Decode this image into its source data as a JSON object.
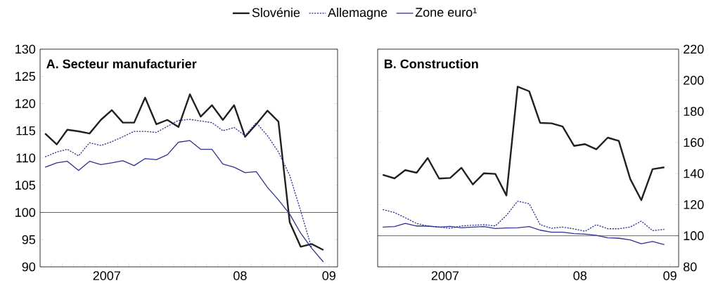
{
  "chart_data": [
    {
      "type": "line",
      "title": "A. Secteur manufacturier",
      "legend": "top",
      "marker": "none",
      "grid": false,
      "x": [
        "2007-01-15",
        "2007-02-15",
        "2007-03-15",
        "2007-04-15",
        "2007-05-15",
        "2007-06-15",
        "2007-07-15",
        "2007-08-15",
        "2007-09-15",
        "2007-10-15",
        "2007-11-15",
        "2007-12-15",
        "2008-01-15",
        "2008-02-15",
        "2008-03-15",
        "2008-04-15",
        "2008-05-15",
        "2008-06-15",
        "2008-07-15",
        "2008-08-15",
        "2008-09-15",
        "2008-10-15",
        "2008-11-15",
        "2008-12-15",
        "2009-01-15",
        "2009-02-15"
      ],
      "series": [
        {
          "name": "Slovénie",
          "color": "#231f20",
          "line_style": "solid",
          "values": [
            114.5,
            112.5,
            115.2,
            114.9,
            114.5,
            117.0,
            118.8,
            116.5,
            116.5,
            121.1,
            116.2,
            117.0,
            115.7,
            121.7,
            117.6,
            119.7,
            117.0,
            119.7,
            113.9,
            116.2,
            118.7,
            116.7,
            98.2,
            93.7,
            94.2,
            93.1
          ]
        },
        {
          "name": "Allemagne",
          "color": "#2e3192",
          "line_style": "dotted",
          "values": [
            110.2,
            111.1,
            111.6,
            110.4,
            112.8,
            112.3,
            113.0,
            113.9,
            114.9,
            114.9,
            114.7,
            115.8,
            116.9,
            117.1,
            116.8,
            116.5,
            115.0,
            115.6,
            114.1,
            116.5,
            114.1,
            111.1,
            106.8,
            100.3,
            93.4,
            null
          ]
        },
        {
          "name": "Zone euro¹",
          "color": "#2e3192",
          "line_style": "solid",
          "values": [
            108.3,
            109.1,
            109.4,
            107.7,
            109.4,
            108.8,
            109.1,
            109.5,
            108.6,
            109.9,
            109.7,
            110.6,
            112.9,
            113.2,
            111.6,
            111.6,
            108.9,
            108.3,
            107.3,
            107.5,
            104.6,
            102.3,
            99.7,
            96.2,
            93.4,
            90.9
          ]
        }
      ],
      "xlim": [
        "2007-01-01",
        "2009-03-25"
      ],
      "ylim": [
        90,
        130
      ],
      "xticks": [
        {
          "value": "2007-02-01",
          "label": null
        },
        {
          "value": "2007-03-01",
          "label": null
        },
        {
          "value": "2007-04-01",
          "label": null
        },
        {
          "value": "2007-05-01",
          "label": null
        },
        {
          "value": "2007-06-01",
          "label": null
        },
        {
          "value": "2007-07-01",
          "label": "2007"
        },
        {
          "value": "2007-08-01",
          "label": null
        },
        {
          "value": "2007-09-01",
          "label": null
        },
        {
          "value": "2007-10-01",
          "label": null
        },
        {
          "value": "2007-11-01",
          "label": null
        },
        {
          "value": "2007-12-01",
          "label": null
        },
        {
          "value": "2008-01-01",
          "label": null
        },
        {
          "value": "2008-02-01",
          "label": null
        },
        {
          "value": "2008-03-01",
          "label": null
        },
        {
          "value": "2008-04-01",
          "label": null
        },
        {
          "value": "2008-05-01",
          "label": null
        },
        {
          "value": "2008-06-01",
          "label": null
        },
        {
          "value": "2008-07-01",
          "label": "08"
        },
        {
          "value": "2008-08-01",
          "label": null
        },
        {
          "value": "2008-09-01",
          "label": null
        },
        {
          "value": "2008-10-01",
          "label": null
        },
        {
          "value": "2008-11-01",
          "label": null
        },
        {
          "value": "2008-12-01",
          "label": null
        },
        {
          "value": "2009-01-01",
          "label": null
        },
        {
          "value": "2009-02-01",
          "label": null
        },
        {
          "value": "2009-03-01",
          "label": "09"
        }
      ],
      "yticks": [
        90,
        95,
        100,
        105,
        110,
        115,
        120,
        125,
        130
      ],
      "ref_lines": [
        {
          "axis": "y",
          "value": 100
        }
      ]
    },
    {
      "type": "line",
      "title": "B. Construction",
      "marker": "none",
      "grid": false,
      "x": [
        "2007-01-15",
        "2007-02-15",
        "2007-03-15",
        "2007-04-15",
        "2007-05-15",
        "2007-06-15",
        "2007-07-15",
        "2007-08-15",
        "2007-09-15",
        "2007-10-15",
        "2007-11-15",
        "2007-12-15",
        "2008-01-15",
        "2008-02-15",
        "2008-03-15",
        "2008-04-15",
        "2008-05-15",
        "2008-06-15",
        "2008-07-15",
        "2008-08-15",
        "2008-09-15",
        "2008-10-15",
        "2008-11-15",
        "2008-12-15",
        "2009-01-15",
        "2009-02-15"
      ],
      "series": [
        {
          "color": "#231f20",
          "line_style": "solid",
          "values": [
            139.2,
            136.9,
            142.2,
            140.5,
            150.0,
            136.8,
            137.2,
            143.7,
            133.0,
            140.2,
            139.8,
            125.9,
            195.9,
            192.9,
            172.6,
            172.3,
            170.3,
            157.8,
            158.9,
            155.6,
            163.1,
            161.0,
            136.5,
            122.9,
            142.8,
            144.0
          ]
        },
        {
          "color": "#2e3192",
          "line_style": "dotted",
          "values": [
            116.9,
            114.9,
            111.6,
            107.9,
            106.3,
            105.6,
            104.8,
            106.3,
            106.8,
            107.1,
            106.3,
            113.1,
            122.2,
            120.6,
            107.1,
            104.8,
            105.6,
            104.4,
            102.9,
            107.1,
            104.5,
            104.5,
            105.6,
            109.4,
            103.3,
            104.1
          ]
        },
        {
          "color": "#2e3192",
          "line_style": "solid",
          "values": [
            105.6,
            105.9,
            107.9,
            106.3,
            106.2,
            105.6,
            106.0,
            105.1,
            105.6,
            105.9,
            104.7,
            105.0,
            105.1,
            105.9,
            103.6,
            102.3,
            102.3,
            101.4,
            101.1,
            100.3,
            98.7,
            98.4,
            97.3,
            94.8,
            96.3,
            94.3
          ]
        }
      ],
      "xlim": [
        "2007-01-01",
        "2009-03-25"
      ],
      "ylim": [
        80,
        220
      ],
      "xticks": [
        {
          "value": "2007-02-01",
          "label": null
        },
        {
          "value": "2007-03-01",
          "label": null
        },
        {
          "value": "2007-04-01",
          "label": null
        },
        {
          "value": "2007-05-01",
          "label": null
        },
        {
          "value": "2007-06-01",
          "label": null
        },
        {
          "value": "2007-07-01",
          "label": "2007"
        },
        {
          "value": "2007-08-01",
          "label": null
        },
        {
          "value": "2007-09-01",
          "label": null
        },
        {
          "value": "2007-10-01",
          "label": null
        },
        {
          "value": "2007-11-01",
          "label": null
        },
        {
          "value": "2007-12-01",
          "label": null
        },
        {
          "value": "2008-01-01",
          "label": null
        },
        {
          "value": "2008-02-01",
          "label": null
        },
        {
          "value": "2008-03-01",
          "label": null
        },
        {
          "value": "2008-04-01",
          "label": null
        },
        {
          "value": "2008-05-01",
          "label": null
        },
        {
          "value": "2008-06-01",
          "label": null
        },
        {
          "value": "2008-07-01",
          "label": "08"
        },
        {
          "value": "2008-08-01",
          "label": null
        },
        {
          "value": "2008-09-01",
          "label": null
        },
        {
          "value": "2008-10-01",
          "label": null
        },
        {
          "value": "2008-11-01",
          "label": null
        },
        {
          "value": "2008-12-01",
          "label": null
        },
        {
          "value": "2009-01-01",
          "label": null
        },
        {
          "value": "2009-02-01",
          "label": null
        },
        {
          "value": "2009-03-01",
          "label": "09"
        }
      ],
      "yticks": [
        80,
        100,
        120,
        140,
        160,
        180,
        200,
        220
      ],
      "ref_lines": [
        {
          "axis": "y",
          "value": 100
        }
      ]
    }
  ]
}
